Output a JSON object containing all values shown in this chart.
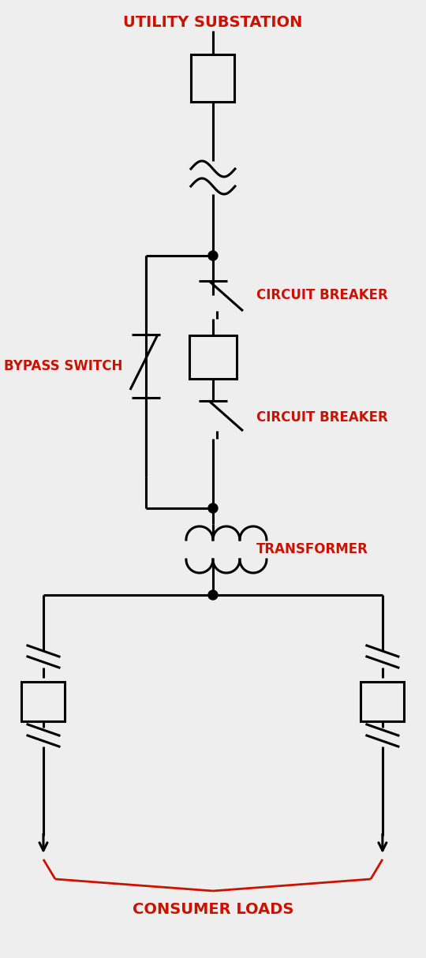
{
  "bg_color": "#eeeeee",
  "line_color": "#000000",
  "red_color": "#cc1100",
  "lw": 2.2,
  "title": "UTILITY SUBSTATION",
  "label_circuit_breaker": "CIRCUIT BREAKER",
  "label_bypass": "BYPASS SWITCH",
  "label_transformer": "TRANSFORMER",
  "label_consumer": "CONSUMER LOADS",
  "font_size_label": 12,
  "font_size_title": 14
}
